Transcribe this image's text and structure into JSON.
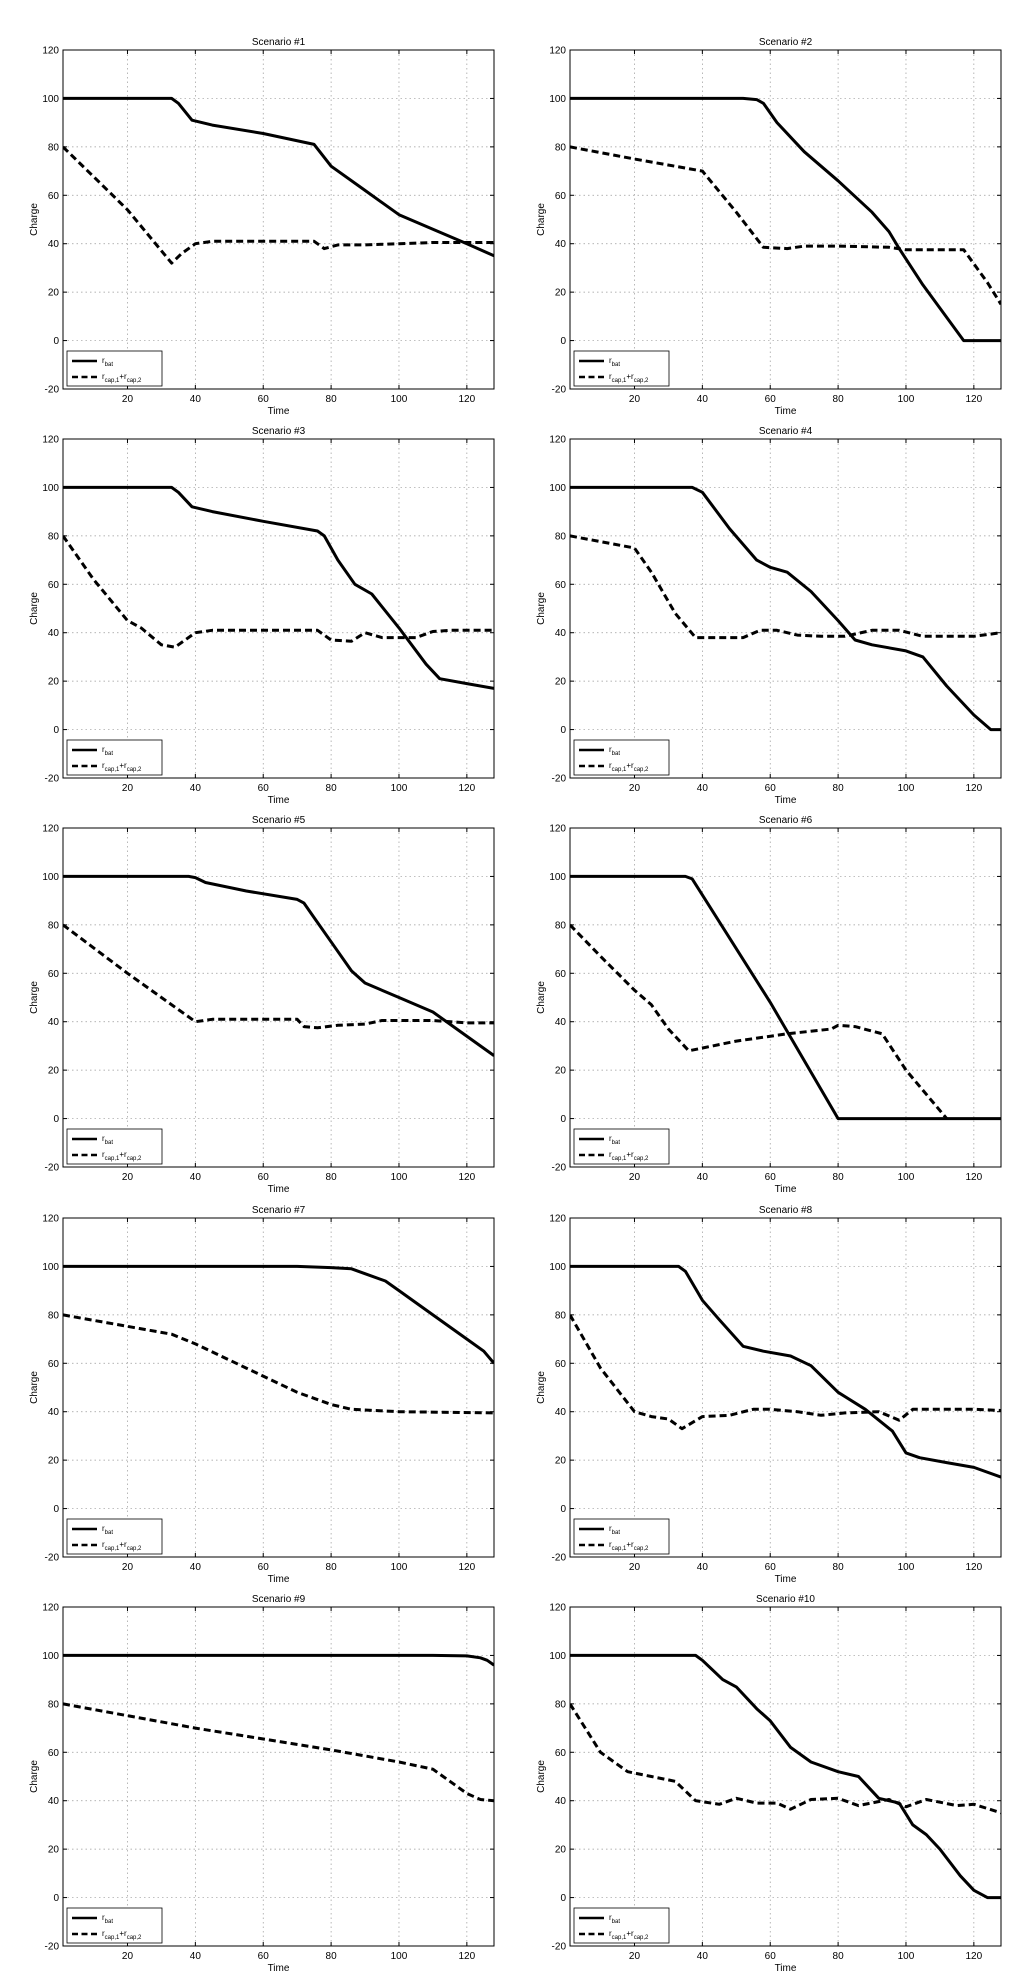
{
  "chart_data": [
    {
      "type": "line",
      "title": "Scenario #1",
      "xlabel": "Time",
      "ylabel": "Charge",
      "xlim": [
        1,
        128
      ],
      "ylim": [
        -20,
        120
      ],
      "xticks": [
        20,
        40,
        60,
        80,
        100,
        120
      ],
      "yticks": [
        -20,
        0,
        20,
        40,
        60,
        80,
        100,
        120
      ],
      "grid": true,
      "legend": "bottom-left",
      "series": [
        {
          "name": "r_bat",
          "label_main": "r",
          "label_sub": "bat",
          "style": "solid",
          "x": [
            1,
            33,
            35,
            39,
            45,
            60,
            75,
            80,
            90,
            100,
            110,
            120,
            128
          ],
          "y": [
            100,
            100,
            98,
            91,
            89,
            85.5,
            81,
            72,
            62,
            52,
            46,
            40,
            35
          ]
        },
        {
          "name": "r_cap,1+r_cap,2",
          "label_main": "r",
          "label_sub": "cap,1",
          "label_plus": "+r",
          "label_sub2": "cap,2",
          "style": "dashed",
          "x": [
            1,
            12,
            20,
            33,
            36,
            40,
            45,
            60,
            75,
            78,
            82,
            90,
            100,
            110,
            128
          ],
          "y": [
            80,
            65,
            54,
            32,
            36,
            40,
            41,
            41,
            41,
            38,
            39.5,
            39.5,
            40,
            40.5,
            40.5
          ]
        }
      ]
    },
    {
      "type": "line",
      "title": "Scenario #2",
      "xlabel": "Time",
      "ylabel": "Charge",
      "xlim": [
        1,
        128
      ],
      "ylim": [
        -20,
        120
      ],
      "xticks": [
        20,
        40,
        60,
        80,
        100,
        120
      ],
      "yticks": [
        -20,
        0,
        20,
        40,
        60,
        80,
        100,
        120
      ],
      "grid": true,
      "legend": "bottom-left",
      "series": [
        {
          "name": "r_bat",
          "label_main": "r",
          "label_sub": "bat",
          "style": "solid",
          "x": [
            1,
            52,
            56,
            58,
            62,
            70,
            80,
            90,
            95,
            98,
            105,
            117,
            128
          ],
          "y": [
            100,
            100,
            99.5,
            98,
            90,
            78,
            66,
            53,
            45,
            38,
            23,
            0,
            0
          ]
        },
        {
          "name": "r_cap,1+r_cap,2",
          "label_main": "r",
          "label_sub": "cap,1",
          "label_plus": "+r",
          "label_sub2": "cap,2",
          "style": "dashed",
          "x": [
            1,
            20,
            40,
            50,
            58,
            65,
            70,
            80,
            95,
            100,
            110,
            117,
            124,
            128
          ],
          "y": [
            80,
            75,
            70,
            53,
            38.5,
            38,
            39,
            39,
            38.5,
            37.5,
            37.5,
            37.5,
            24,
            15
          ]
        }
      ]
    },
    {
      "type": "line",
      "title": "Scenario #3",
      "xlabel": "Time",
      "ylabel": "Charge",
      "xlim": [
        1,
        128
      ],
      "ylim": [
        -20,
        120
      ],
      "xticks": [
        20,
        40,
        60,
        80,
        100,
        120
      ],
      "yticks": [
        -20,
        0,
        20,
        40,
        60,
        80,
        100,
        120
      ],
      "grid": true,
      "legend": "bottom-left",
      "series": [
        {
          "name": "r_bat",
          "label_main": "r",
          "label_sub": "bat",
          "style": "solid",
          "x": [
            1,
            33,
            35,
            39,
            45,
            60,
            76,
            78,
            82,
            87,
            92,
            100,
            108,
            112,
            120,
            128
          ],
          "y": [
            100,
            100,
            98,
            92,
            90,
            86,
            82,
            80,
            70,
            60,
            56,
            42,
            27,
            21,
            19,
            17
          ]
        },
        {
          "name": "r_cap,1+r_cap,2",
          "label_main": "r",
          "label_sub": "cap,1",
          "label_plus": "+r",
          "label_sub2": "cap,2",
          "style": "dashed",
          "x": [
            1,
            10,
            20,
            24,
            30,
            34,
            40,
            45,
            60,
            76,
            80,
            86,
            90,
            95,
            105,
            110,
            115,
            128
          ],
          "y": [
            80,
            62,
            45,
            42,
            35,
            34,
            40,
            41,
            41,
            41,
            37,
            36.5,
            40,
            38,
            38,
            40.5,
            41,
            41
          ]
        }
      ]
    },
    {
      "type": "line",
      "title": "Scenario #4",
      "xlabel": "Time",
      "ylabel": "Charge",
      "xlim": [
        1,
        128
      ],
      "ylim": [
        -20,
        120
      ],
      "xticks": [
        20,
        40,
        60,
        80,
        100,
        120
      ],
      "yticks": [
        -20,
        0,
        20,
        40,
        60,
        80,
        100,
        120
      ],
      "grid": true,
      "legend": "bottom-left",
      "series": [
        {
          "name": "r_bat",
          "label_main": "r",
          "label_sub": "bat",
          "style": "solid",
          "x": [
            1,
            37,
            40,
            48,
            56,
            60,
            65,
            72,
            80,
            85,
            90,
            100,
            105,
            112,
            120,
            125,
            128
          ],
          "y": [
            100,
            100,
            98,
            83,
            70,
            67,
            65,
            57,
            45,
            37,
            35,
            32.5,
            30,
            18,
            6,
            0,
            0
          ]
        },
        {
          "name": "r_cap,1+r_cap,2",
          "label_main": "r",
          "label_sub": "cap,1",
          "label_plus": "+r",
          "label_sub2": "cap,2",
          "style": "dashed",
          "x": [
            1,
            20,
            25,
            32,
            38,
            42,
            52,
            57,
            62,
            68,
            75,
            82,
            90,
            98,
            105,
            112,
            120,
            128
          ],
          "y": [
            80,
            75,
            65,
            48,
            38,
            38,
            38,
            41,
            41,
            39,
            38.5,
            38.5,
            41,
            41,
            38.5,
            38.5,
            38.5,
            40
          ]
        }
      ]
    },
    {
      "type": "line",
      "title": "Scenario #5",
      "xlabel": "Time",
      "ylabel": "Charge",
      "xlim": [
        1,
        128
      ],
      "ylim": [
        -20,
        120
      ],
      "xticks": [
        20,
        40,
        60,
        80,
        100,
        120
      ],
      "yticks": [
        -20,
        0,
        20,
        40,
        60,
        80,
        100,
        120
      ],
      "grid": true,
      "legend": "bottom-left",
      "series": [
        {
          "name": "r_bat",
          "label_main": "r",
          "label_sub": "bat",
          "style": "solid",
          "x": [
            1,
            38,
            40,
            43,
            55,
            70,
            72,
            75,
            80,
            86,
            90,
            100,
            110,
            115,
            128
          ],
          "y": [
            100,
            100,
            99.5,
            97.5,
            94,
            90.5,
            89,
            83,
            73,
            61,
            56,
            50,
            44,
            39,
            26
          ]
        },
        {
          "name": "r_cap,1+r_cap,2",
          "label_main": "r",
          "label_sub": "cap,1",
          "label_plus": "+r",
          "label_sub2": "cap,2",
          "style": "dashed",
          "x": [
            1,
            20,
            40,
            45,
            60,
            70,
            72,
            76,
            82,
            90,
            95,
            100,
            110,
            120,
            128
          ],
          "y": [
            80,
            60,
            40,
            41,
            41,
            41,
            38,
            37.5,
            38.5,
            39,
            40.5,
            40.5,
            40.5,
            39.5,
            39.5
          ]
        }
      ]
    },
    {
      "type": "line",
      "title": "Scenario #6",
      "xlabel": "Time",
      "ylabel": "Charge",
      "xlim": [
        1,
        128
      ],
      "ylim": [
        -20,
        120
      ],
      "xticks": [
        20,
        40,
        60,
        80,
        100,
        120
      ],
      "yticks": [
        -20,
        0,
        20,
        40,
        60,
        80,
        100,
        120
      ],
      "grid": true,
      "legend": "bottom-left",
      "series": [
        {
          "name": "r_bat",
          "label_main": "r",
          "label_sub": "bat",
          "style": "solid",
          "x": [
            1,
            35,
            37,
            60,
            80,
            81,
            100,
            128
          ],
          "y": [
            100,
            100,
            99,
            48,
            0,
            0,
            0,
            0
          ]
        },
        {
          "name": "r_cap,1+r_cap,2",
          "label_main": "r",
          "label_sub": "cap,1",
          "label_plus": "+r",
          "label_sub2": "cap,2",
          "style": "dashed",
          "x": [
            1,
            10,
            20,
            25,
            30,
            36,
            50,
            65,
            78,
            80,
            85,
            93,
            100,
            112
          ],
          "y": [
            80,
            67,
            53,
            47,
            37,
            28,
            32,
            35,
            37,
            38.5,
            38,
            35,
            20,
            0
          ]
        }
      ]
    },
    {
      "type": "line",
      "title": "Scenario #7",
      "xlabel": "Time",
      "ylabel": "Charge",
      "xlim": [
        1,
        128
      ],
      "ylim": [
        -20,
        120
      ],
      "xticks": [
        20,
        40,
        60,
        80,
        100,
        120
      ],
      "yticks": [
        -20,
        0,
        20,
        40,
        60,
        80,
        100,
        120
      ],
      "grid": true,
      "legend": "bottom-left",
      "series": [
        {
          "name": "r_bat",
          "label_main": "r",
          "label_sub": "bat",
          "style": "solid",
          "x": [
            1,
            70,
            80,
            86,
            90,
            96,
            100,
            110,
            120,
            125,
            128
          ],
          "y": [
            100,
            100,
            99.5,
            99,
            97,
            94,
            90,
            80,
            70,
            65,
            60
          ]
        },
        {
          "name": "r_cap,1+r_cap,2",
          "label_main": "r",
          "label_sub": "cap,1",
          "label_plus": "+r",
          "label_sub2": "cap,2",
          "style": "dashed",
          "x": [
            1,
            33,
            40,
            55,
            70,
            80,
            86,
            100,
            128
          ],
          "y": [
            80,
            72,
            68,
            58,
            48,
            43,
            41,
            40,
            39.5
          ]
        }
      ]
    },
    {
      "type": "line",
      "title": "Scenario #8",
      "xlabel": "Time",
      "ylabel": "Charge",
      "xlim": [
        1,
        128
      ],
      "ylim": [
        -20,
        120
      ],
      "xticks": [
        20,
        40,
        60,
        80,
        100,
        120
      ],
      "yticks": [
        -20,
        0,
        20,
        40,
        60,
        80,
        100,
        120
      ],
      "grid": true,
      "legend": "bottom-left",
      "series": [
        {
          "name": "r_bat",
          "label_main": "r",
          "label_sub": "bat",
          "style": "solid",
          "x": [
            1,
            33,
            35,
            40,
            45,
            52,
            58,
            66,
            72,
            80,
            88,
            96,
            100,
            104,
            112,
            120,
            128
          ],
          "y": [
            100,
            100,
            98,
            86,
            78,
            67,
            65,
            63,
            59,
            48,
            41,
            32,
            23,
            21,
            19,
            17,
            13
          ]
        },
        {
          "name": "r_cap,1+r_cap,2",
          "label_main": "r",
          "label_sub": "cap,1",
          "label_plus": "+r",
          "label_sub2": "cap,2",
          "style": "dashed",
          "x": [
            1,
            10,
            20,
            25,
            30,
            34,
            40,
            48,
            55,
            60,
            68,
            75,
            82,
            92,
            98,
            102,
            110,
            120,
            128
          ],
          "y": [
            80,
            58,
            40,
            38,
            37,
            33,
            38,
            38.5,
            41,
            41,
            40,
            38.5,
            39.5,
            40,
            36.5,
            41,
            41,
            41,
            40.5
          ]
        }
      ]
    },
    {
      "type": "line",
      "title": "Scenario #9",
      "xlabel": "Time",
      "ylabel": "Charge",
      "xlim": [
        1,
        128
      ],
      "ylim": [
        -20,
        120
      ],
      "xticks": [
        20,
        40,
        60,
        80,
        100,
        120
      ],
      "yticks": [
        -20,
        0,
        20,
        40,
        60,
        80,
        100,
        120
      ],
      "grid": true,
      "legend": "bottom-left",
      "series": [
        {
          "name": "r_bat",
          "label_main": "r",
          "label_sub": "bat",
          "style": "solid",
          "x": [
            1,
            110,
            120,
            124,
            126,
            128
          ],
          "y": [
            100,
            100,
            99.8,
            99,
            98,
            96
          ]
        },
        {
          "name": "r_cap,1+r_cap,2",
          "label_main": "r",
          "label_sub": "cap,1",
          "label_plus": "+r",
          "label_sub2": "cap,2",
          "style": "dashed",
          "x": [
            1,
            40,
            80,
            100,
            110,
            115,
            120,
            124,
            128
          ],
          "y": [
            80,
            70,
            61,
            56,
            53,
            48,
            43,
            40.5,
            40
          ]
        }
      ]
    },
    {
      "type": "line",
      "title": "Scenario #10",
      "xlabel": "Time",
      "ylabel": "Charge",
      "xlim": [
        1,
        128
      ],
      "ylim": [
        -20,
        120
      ],
      "xticks": [
        20,
        40,
        60,
        80,
        100,
        120
      ],
      "yticks": [
        -20,
        0,
        20,
        40,
        60,
        80,
        100,
        120
      ],
      "grid": true,
      "legend": "bottom-left",
      "series": [
        {
          "name": "r_bat",
          "label_main": "r",
          "label_sub": "bat",
          "style": "solid",
          "x": [
            1,
            38,
            40,
            46,
            50,
            56,
            60,
            66,
            72,
            80,
            86,
            92,
            98,
            102,
            106,
            110,
            116,
            120,
            124,
            128
          ],
          "y": [
            100,
            100,
            98,
            90,
            87,
            78,
            73,
            62,
            56,
            52,
            50,
            41,
            39,
            30,
            26,
            20,
            9,
            3,
            0,
            0
          ]
        },
        {
          "name": "r_cap,1+r_cap,2",
          "label_main": "r",
          "label_sub": "cap,1",
          "label_plus": "+r",
          "label_sub2": "cap,2",
          "style": "dashed",
          "x": [
            1,
            10,
            18,
            25,
            32,
            38,
            45,
            50,
            56,
            62,
            66,
            72,
            80,
            86,
            95,
            100,
            106,
            115,
            120,
            128
          ],
          "y": [
            80,
            60,
            52,
            50,
            48,
            40,
            38.5,
            41,
            39,
            39,
            36.5,
            40.5,
            41,
            38,
            40.5,
            37.5,
            40.5,
            38,
            38.5,
            35
          ]
        }
      ]
    }
  ]
}
